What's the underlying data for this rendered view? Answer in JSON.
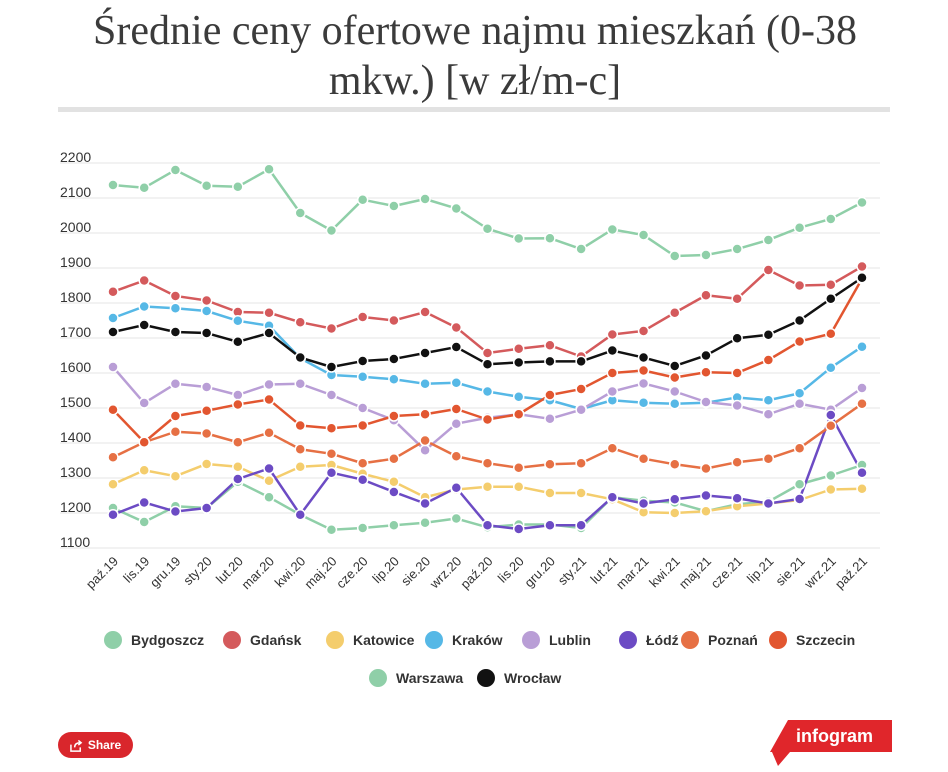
{
  "chart_data": {
    "type": "line",
    "title": "Średnie ceny ofertowe najmu mieszkań (0-38 mkw.) [w zł/m-c]",
    "x": [
      "paź.19",
      "lis.19",
      "gru.19",
      "sty.20",
      "lut.20",
      "mar.20",
      "kwi.20",
      "maj.20",
      "cze.20",
      "lip.20",
      "sie.20",
      "wrz.20",
      "paź.20",
      "lis.20",
      "gru.20",
      "sty.21",
      "lut.21",
      "mar.21",
      "kwi.21",
      "maj.21",
      "cze.21",
      "lip.21",
      "sie.21",
      "wrz.21",
      "paź.21"
    ],
    "yticks": [
      1100,
      1200,
      1300,
      1400,
      1500,
      1600,
      1700,
      1800,
      1900,
      2000,
      2100,
      2200
    ],
    "ylim": [
      1100,
      2200
    ],
    "grid": true,
    "legend_position": "bottom",
    "series": [
      {
        "name": "Bydgoszcz",
        "color": "#8fcfa8",
        "values": [
          1197,
          1157,
          1202,
          1197,
          1272,
          1228,
          1178,
          1135,
          1140,
          1148,
          1155,
          1167,
          1142,
          1150,
          1150,
          1140,
          1228,
          1218,
          1213,
          1188,
          1208,
          1215,
          1265,
          1290,
          1320
        ]
      },
      {
        "name": "Gdańsk",
        "color": "#d45a5c",
        "values": [
          1815,
          1847,
          1803,
          1790,
          1757,
          1755,
          1728,
          1710,
          1743,
          1733,
          1757,
          1713,
          1640,
          1652,
          1662,
          1630,
          1693,
          1703,
          1755,
          1805,
          1795,
          1877,
          1833,
          1835,
          1887
        ]
      },
      {
        "name": "Katowice",
        "color": "#f4cd6d",
        "values": [
          1265,
          1305,
          1288,
          1323,
          1315,
          1275,
          1315,
          1320,
          1295,
          1272,
          1228,
          1250,
          1258,
          1258,
          1240,
          1240,
          1222,
          1185,
          1183,
          1188,
          1202,
          1210,
          1220,
          1250,
          1252
        ]
      },
      {
        "name": "Kraków",
        "color": "#56b8e6",
        "values": [
          1740,
          1773,
          1768,
          1760,
          1732,
          1718,
          1625,
          1577,
          1572,
          1565,
          1552,
          1555,
          1530,
          1515,
          1505,
          1480,
          1505,
          1498,
          1495,
          1498,
          1513,
          1505,
          1525,
          1598,
          1658
        ]
      },
      {
        "name": "Lublin",
        "color": "#b99ed6",
        "values": [
          1600,
          1497,
          1552,
          1543,
          1520,
          1550,
          1552,
          1520,
          1483,
          1448,
          1362,
          1438,
          1455,
          1465,
          1452,
          1478,
          1530,
          1553,
          1530,
          1500,
          1490,
          1465,
          1495,
          1478,
          1540
        ]
      },
      {
        "name": "Łódź",
        "color": "#6c4bc4",
        "values": [
          1178,
          1213,
          1187,
          1197,
          1280,
          1310,
          1178,
          1298,
          1278,
          1243,
          1210,
          1255,
          1148,
          1137,
          1148,
          1148,
          1228,
          1210,
          1222,
          1233,
          1225,
          1210,
          1223,
          1463,
          1298
        ]
      },
      {
        "name": "Poznań",
        "color": "#e67044",
        "values": [
          1342,
          1385,
          1415,
          1410,
          1385,
          1412,
          1365,
          1352,
          1325,
          1338,
          1390,
          1345,
          1325,
          1312,
          1322,
          1325,
          1368,
          1338,
          1322,
          1310,
          1328,
          1338,
          1368,
          1432,
          1495
        ]
      },
      {
        "name": "Szczecin",
        "color": "#e25630",
        "values": [
          1478,
          1385,
          1460,
          1475,
          1493,
          1507,
          1433,
          1425,
          1433,
          1460,
          1465,
          1480,
          1450,
          1465,
          1520,
          1537,
          1583,
          1590,
          1570,
          1585,
          1583,
          1620,
          1673,
          1695,
          1852
        ]
      },
      {
        "name": "Warszawa",
        "color": "#8fcfa8",
        "values": [
          2120,
          2112,
          2163,
          2118,
          2115,
          2165,
          2040,
          1990,
          2078,
          2060,
          2080,
          2053,
          1995,
          1967,
          1968,
          1937,
          1993,
          1977,
          1917,
          1920,
          1937,
          1963,
          1998,
          2023,
          2070
        ]
      },
      {
        "name": "Wrocław",
        "color": "#111111",
        "values": [
          1700,
          1720,
          1700,
          1697,
          1672,
          1697,
          1627,
          1600,
          1617,
          1623,
          1640,
          1657,
          1608,
          1613,
          1616,
          1616,
          1647,
          1627,
          1603,
          1633,
          1682,
          1692,
          1733,
          1795,
          1855
        ]
      }
    ]
  },
  "ui": {
    "share_label": "Share",
    "logo_label": "infogram"
  }
}
